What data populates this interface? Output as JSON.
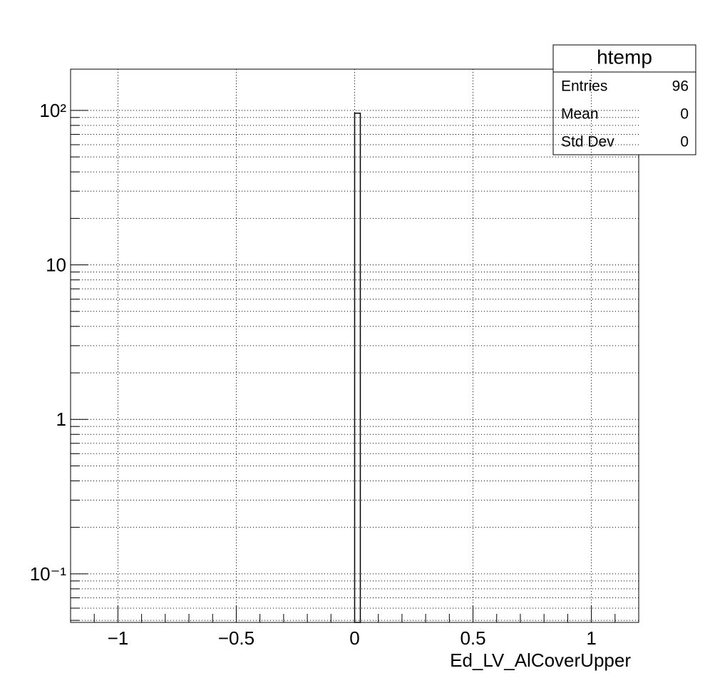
{
  "chart_data": {
    "type": "histogram",
    "x_label": "Ed_LV_AlCoverUpper",
    "bins": [
      0,
      0.024
    ],
    "values": [
      96
    ],
    "color": "#000000",
    "xlim": [
      -1.2,
      1.2
    ],
    "xticks": [
      -1,
      -0.5,
      0,
      0.5,
      1
    ],
    "xminorticks": [
      -1.1,
      -0.9,
      -0.8,
      -0.7,
      -0.6,
      -0.4,
      -0.3,
      -0.2,
      -0.1,
      0.1,
      0.2,
      0.3,
      0.4,
      0.6,
      0.7,
      0.8,
      0.9,
      1.1
    ],
    "ylim": [
      0.0485,
      185
    ],
    "log_y": true,
    "yticks": [
      {
        "value": 0.1,
        "label": "10⁻¹"
      },
      1,
      10,
      {
        "value": 100,
        "label": "10²"
      }
    ],
    "yminorticks": [
      0.05,
      0.06,
      0.07,
      0.08,
      0.09,
      0.2,
      0.3,
      0.4,
      0.5,
      0.6,
      0.7,
      0.8,
      0.9,
      2,
      3,
      4,
      5,
      6,
      7,
      8,
      9,
      20,
      30,
      40,
      50,
      60,
      70,
      80,
      90
    ],
    "grid": true,
    "stats": {
      "title": "htemp",
      "rows": [
        [
          "Entries",
          "96"
        ],
        [
          "Mean",
          "0"
        ],
        [
          "Std Dev",
          "0"
        ]
      ]
    }
  }
}
